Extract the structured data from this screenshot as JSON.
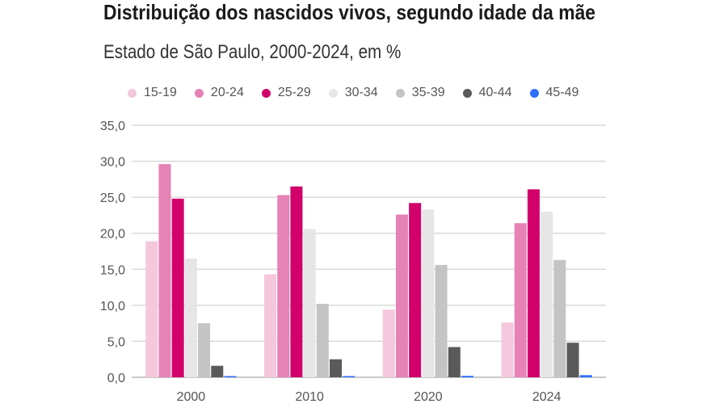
{
  "title": "Distribuição dos nascidos vivos, segundo idade da mãe",
  "subtitle": "Estado de São Paulo, 2000-2024, em %",
  "chart_data": {
    "type": "bar",
    "title": "Distribuição dos nascidos vivos, segundo idade da mãe",
    "subtitle": "Estado de São Paulo, 2000-2024, em %",
    "xlabel": "",
    "ylabel": "",
    "ylim": [
      0,
      35
    ],
    "yticks": [
      "0,0",
      "5,0",
      "10,0",
      "15,0",
      "20,0",
      "25,0",
      "30,0",
      "35,0"
    ],
    "grid": true,
    "legend_position": "top",
    "categories": [
      "2000",
      "2010",
      "2020",
      "2024"
    ],
    "series": [
      {
        "name": "15-19",
        "color": "#f4c7dc",
        "values": [
          18.9,
          14.3,
          9.4,
          7.6
        ]
      },
      {
        "name": "20-24",
        "color": "#e682b6",
        "values": [
          29.6,
          25.3,
          22.6,
          21.4
        ]
      },
      {
        "name": "25-29",
        "color": "#d1006b",
        "values": [
          24.8,
          26.5,
          24.2,
          26.1
        ]
      },
      {
        "name": "30-34",
        "color": "#e6e6e6",
        "values": [
          16.5,
          20.6,
          23.3,
          23.0
        ]
      },
      {
        "name": "35-39",
        "color": "#c4c4c4",
        "values": [
          7.5,
          10.2,
          15.6,
          16.3
        ]
      },
      {
        "name": "40-44",
        "color": "#5a5a5a",
        "values": [
          1.6,
          2.5,
          4.2,
          4.8
        ]
      },
      {
        "name": "45-49",
        "color": "#2f6fff",
        "values": [
          0.1,
          0.1,
          0.2,
          0.3
        ]
      }
    ]
  }
}
